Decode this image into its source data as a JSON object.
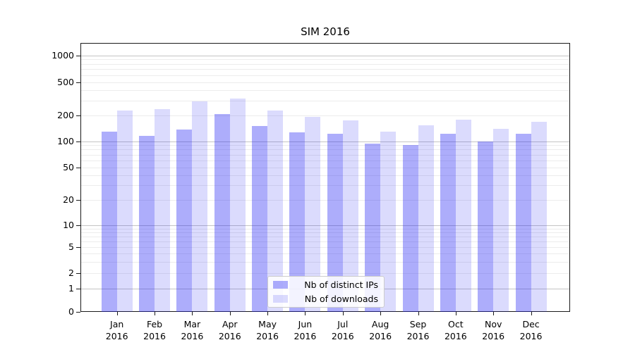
{
  "title": "SIM 2016",
  "chart_data": {
    "type": "bar",
    "title": "SIM 2016",
    "categories": [
      "Jan",
      "Feb",
      "Mar",
      "Apr",
      "May",
      "Jun",
      "Jul",
      "Aug",
      "Sep",
      "Oct",
      "Nov",
      "Dec"
    ],
    "category_year_line": "2016",
    "series": [
      {
        "name": "Nb of distinct IPs",
        "color": "rgba(40,40,245,0.38)",
        "values": [
          130,
          116,
          138,
          206,
          151,
          127,
          122,
          94,
          91,
          122,
          100,
          121
        ]
      },
      {
        "name": "Nb of downloads",
        "color": "rgba(40,40,245,0.17)",
        "values": [
          228,
          240,
          295,
          320,
          228,
          192,
          175,
          130,
          154,
          177,
          140,
          168
        ]
      }
    ],
    "yscale": "symlog",
    "yticks": [
      0,
      1,
      2,
      5,
      10,
      20,
      50,
      100,
      200,
      500,
      1000
    ],
    "ylim": [
      0,
      1500
    ],
    "grid": true,
    "legend_position": "lower center",
    "colors": {
      "major_grid": "#c4c4c4",
      "minor_grid": "#ececec",
      "spine": "#1a1a1a"
    }
  }
}
